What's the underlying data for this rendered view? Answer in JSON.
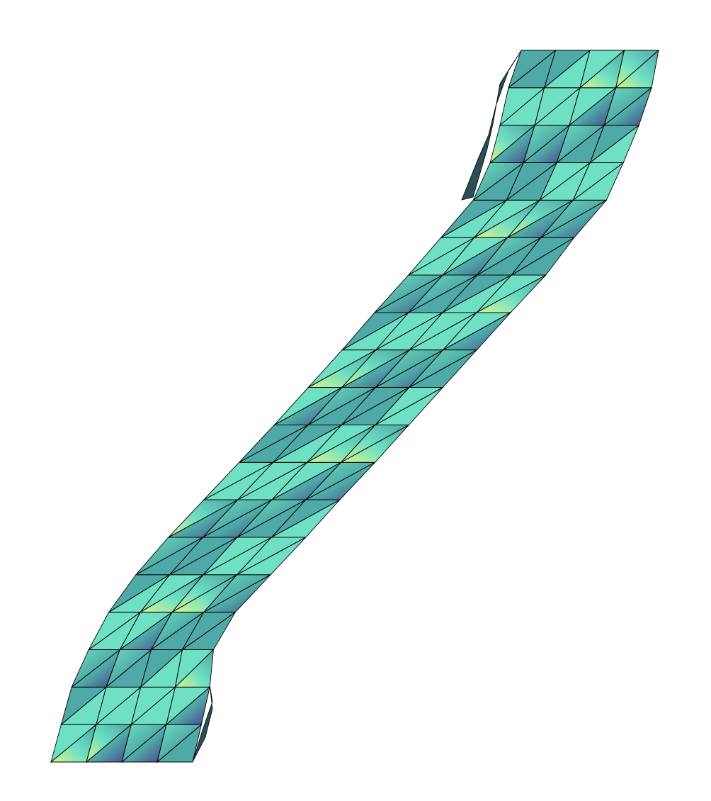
{
  "figure": {
    "subject": "triangulated-surface-mesh",
    "rows": 19,
    "cols": 4,
    "triangulation": "quad-diagonal",
    "colormap": "viridis-like",
    "colors": {
      "background": "#ffffff",
      "edge": "#000000",
      "side_face": "#2a4f57",
      "low": "#4a3d8f",
      "mid": "#4fa9a6",
      "high": "#6fe0c4",
      "peak": "#d8f58a"
    }
  }
}
